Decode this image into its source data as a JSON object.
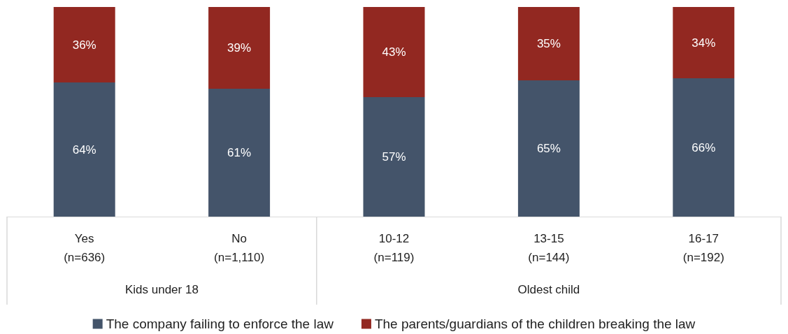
{
  "chart_data": {
    "type": "bar",
    "stacked": true,
    "categories": [
      "Yes\n(n=636)",
      "No\n(n=1,110)",
      "10-12\n(n=119)",
      "13-15\n(n=144)",
      "16-17\n(n=192)"
    ],
    "series": [
      {
        "name": "The company failing to enforce the law",
        "color": "#44546a",
        "values": [
          64,
          61,
          57,
          65,
          66
        ],
        "value_labels": [
          "64%",
          "61%",
          "57%",
          "65%",
          "66%"
        ]
      },
      {
        "name": "The parents/guardians of the children breaking the law",
        "color": "#922821",
        "values": [
          36,
          39,
          43,
          35,
          34
        ],
        "value_labels": [
          "36%",
          "39%",
          "43%",
          "35%",
          "34%"
        ]
      }
    ],
    "tick_labels": "x",
    "legend": "bottom",
    "annotations": [
      "Kids under 18",
      "Oldest child"
    ]
  }
}
